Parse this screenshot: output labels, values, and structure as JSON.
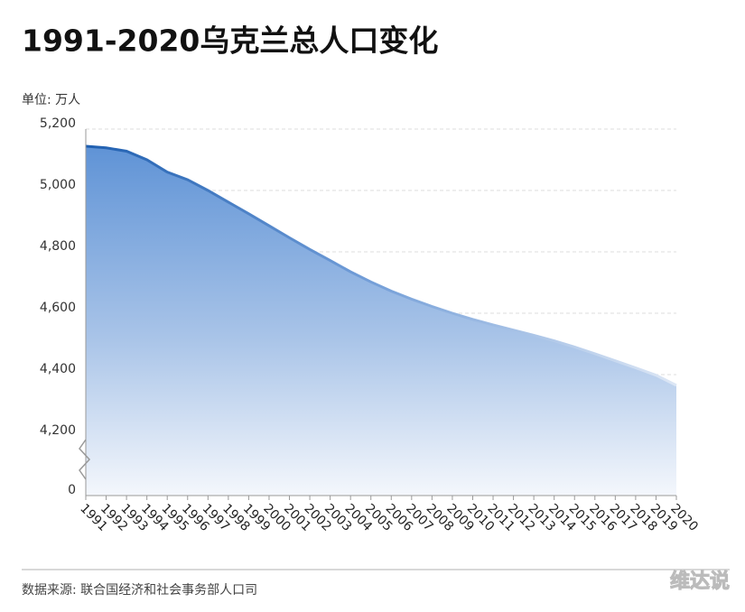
{
  "chart_data": {
    "type": "area",
    "title": "1991-2020乌克兰总人口变化",
    "subtitle": "单位: 万人",
    "categories": [
      "1991",
      "1992",
      "1993",
      "1994",
      "1995",
      "1996",
      "1997",
      "1998",
      "1999",
      "2000",
      "2001",
      "2002",
      "2003",
      "2004",
      "2005",
      "2006",
      "2007",
      "2008",
      "2009",
      "2010",
      "2011",
      "2012",
      "2013",
      "2014",
      "2015",
      "2016",
      "2017",
      "2018",
      "2019",
      "2020"
    ],
    "series": [
      {
        "name": "乌克兰总人口",
        "color": "#1f5fb0",
        "values": [
          5144,
          5139,
          5128,
          5100,
          5060,
          5035,
          5000,
          4962,
          4924,
          4885,
          4846,
          4808,
          4772,
          4735,
          4702,
          4672,
          4646,
          4622,
          4600,
          4580,
          4562,
          4545,
          4528,
          4510,
          4490,
          4468,
          4445,
          4422,
          4398,
          4365
        ]
      }
    ],
    "ylim": [
      0,
      5200
    ],
    "yticks": [
      0,
      {
        "value": 4200,
        "label": "4,200"
      },
      {
        "value": 4400,
        "label": "4,400"
      },
      {
        "value": 4600,
        "label": "4,600"
      },
      {
        "value": 4800,
        "label": "4,800"
      },
      {
        "value": 5000,
        "label": "5,000"
      },
      {
        "value": 5200,
        "label": "5,200"
      }
    ],
    "y_axis_break": true,
    "grid": true,
    "source": "数据来源: 联合国经济和社会事务部人口司",
    "watermark": "维达说"
  }
}
